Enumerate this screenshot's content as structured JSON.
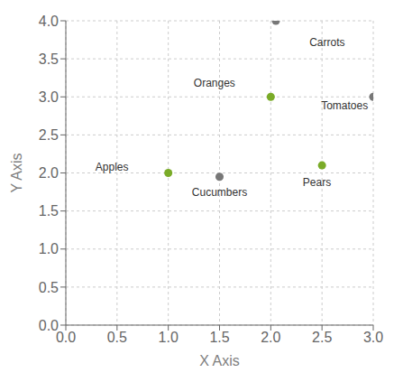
{
  "chart_data": {
    "type": "scatter",
    "x_label": "X Axis",
    "y_label": "Y Axis",
    "xlim": [
      0.0,
      3.0
    ],
    "ylim": [
      0.0,
      4.0
    ],
    "xticks": [
      {
        "value": 0,
        "label": "0.0"
      },
      0.5,
      {
        "value": 1,
        "label": "1.0"
      },
      1.5,
      {
        "value": 2,
        "label": "2.0"
      },
      2.5,
      {
        "value": 3,
        "label": "3.0"
      }
    ],
    "yticks": [
      {
        "value": 0,
        "label": "0.0"
      },
      0.5,
      {
        "value": 1,
        "label": "1.0"
      },
      1.5,
      {
        "value": 2,
        "label": "2.0"
      },
      2.5,
      {
        "value": 3,
        "label": "3.0"
      },
      3.5,
      {
        "value": 4,
        "label": "4.0"
      }
    ],
    "x": [
      1.0,
      1.5,
      2.0,
      2.5,
      2.05,
      3.0
    ],
    "values": [
      2.0,
      1.95,
      3.0,
      2.1,
      4.0,
      3.0
    ],
    "colors": [
      "#7aab28",
      "#777777",
      "#7aab28",
      "#7aab28",
      "#777777",
      "#777777"
    ],
    "annotations": [
      {
        "text": "Apples",
        "x": 0.45,
        "y": 2.08
      },
      {
        "text": "Cucumbers",
        "x": 1.5,
        "y": 1.75
      },
      {
        "text": "Oranges",
        "x": 1.45,
        "y": 3.18
      },
      {
        "text": "Carrots",
        "x": 2.55,
        "y": 3.72
      },
      {
        "text": "Tomatoes",
        "x": 2.72,
        "y": 2.88
      },
      {
        "text": "Pears",
        "x": 2.45,
        "y": 1.87
      }
    ]
  }
}
